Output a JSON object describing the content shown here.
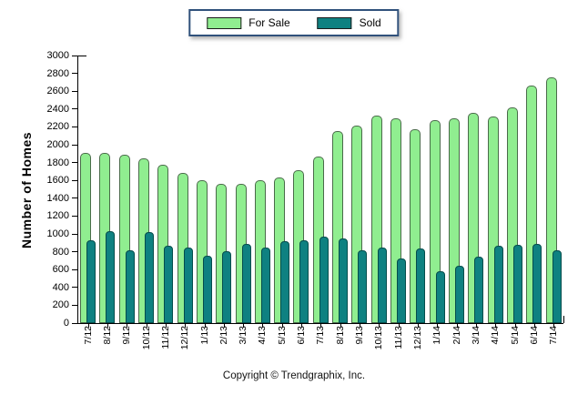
{
  "legend": {
    "items": [
      {
        "label": "For Sale",
        "color": "#90EE90"
      },
      {
        "label": "Sold",
        "color": "#0E8181"
      }
    ]
  },
  "y_axis_title": "Number of Homes",
  "footer": "Copyright © Trendgraphix, Inc.",
  "chart_data": {
    "type": "bar",
    "title": "",
    "xlabel": "",
    "ylabel": "Number of Homes",
    "ylim": [
      0,
      3000
    ],
    "ytick_step": 200,
    "grid": false,
    "legend_position": "top-center",
    "bar_style": "overlapped rounded-top cylinders, Sold bar offset right over For Sale bar",
    "categories": [
      "7/12",
      "8/12",
      "9/12",
      "10/12",
      "11/12",
      "12/12",
      "1/13",
      "2/13",
      "3/13",
      "4/13",
      "5/13",
      "6/13",
      "7/13",
      "8/13",
      "9/13",
      "10/13",
      "11/13",
      "12/13",
      "1/14",
      "2/14",
      "3/14",
      "4/14",
      "5/14",
      "6/14",
      "7/14"
    ],
    "series": [
      {
        "name": "For Sale",
        "color": "#90EE90",
        "values": [
          1910,
          1910,
          1885,
          1850,
          1775,
          1680,
          1600,
          1560,
          1565,
          1600,
          1635,
          1710,
          1870,
          2150,
          2215,
          2325,
          2300,
          2175,
          2275,
          2295,
          2355,
          2320,
          2420,
          2660,
          2750
        ]
      },
      {
        "name": "Sold",
        "color": "#0E8181",
        "values": [
          930,
          1030,
          820,
          1020,
          865,
          850,
          750,
          810,
          885,
          850,
          920,
          930,
          965,
          950,
          820,
          845,
          720,
          840,
          580,
          645,
          740,
          870,
          880,
          890,
          820
        ]
      }
    ]
  }
}
